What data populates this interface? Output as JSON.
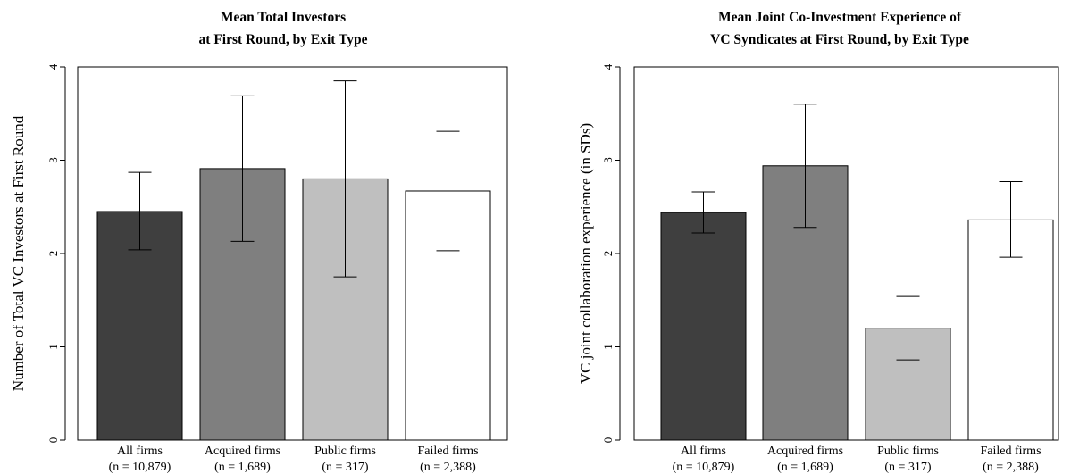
{
  "chart_data": [
    {
      "type": "bar",
      "title": [
        "Mean Total Investors",
        "at First Round, by Exit Type"
      ],
      "ylabel": "Number of Total VC Investors at First Round",
      "xlabel": "",
      "ylim": [
        0,
        4
      ],
      "yticks": [
        "0",
        "1",
        "2",
        "3",
        "4"
      ],
      "categories": [
        "All firms",
        "Acquired firms",
        "Public firms",
        "Failed firms"
      ],
      "n_labels": [
        "(n = 10,879)",
        "(n = 1,689)",
        "(n = 317)",
        "(n = 2,388)"
      ],
      "values": [
        2.45,
        2.91,
        2.8,
        2.67
      ],
      "error_low": [
        2.04,
        2.13,
        1.75,
        2.03
      ],
      "error_high": [
        2.87,
        3.69,
        3.85,
        3.31
      ],
      "colors": [
        "#3f3f3f",
        "#7f7f7f",
        "#bfbfbf",
        "#ffffff"
      ],
      "grid": false,
      "legend": "none"
    },
    {
      "type": "bar",
      "title": [
        "Mean Joint Co-Investment Experience of",
        "VC Syndicates at First Round, by Exit Type"
      ],
      "ylabel": "VC joint collaboration experience (in SDs)",
      "xlabel": "",
      "ylim": [
        0,
        4
      ],
      "yticks": [
        "0",
        "1",
        "2",
        "3",
        "4"
      ],
      "categories": [
        "All firms",
        "Acquired firms",
        "Public firms",
        "Failed firms"
      ],
      "n_labels": [
        "(n = 10,879)",
        "(n = 1,689)",
        "(n = 317)",
        "(n = 2,388)"
      ],
      "values": [
        2.44,
        2.94,
        1.2,
        2.36
      ],
      "error_low": [
        2.22,
        2.28,
        0.86,
        1.96
      ],
      "error_high": [
        2.66,
        3.6,
        1.54,
        2.77
      ],
      "colors": [
        "#3f3f3f",
        "#7f7f7f",
        "#bfbfbf",
        "#ffffff"
      ],
      "grid": false,
      "legend": "none"
    }
  ]
}
